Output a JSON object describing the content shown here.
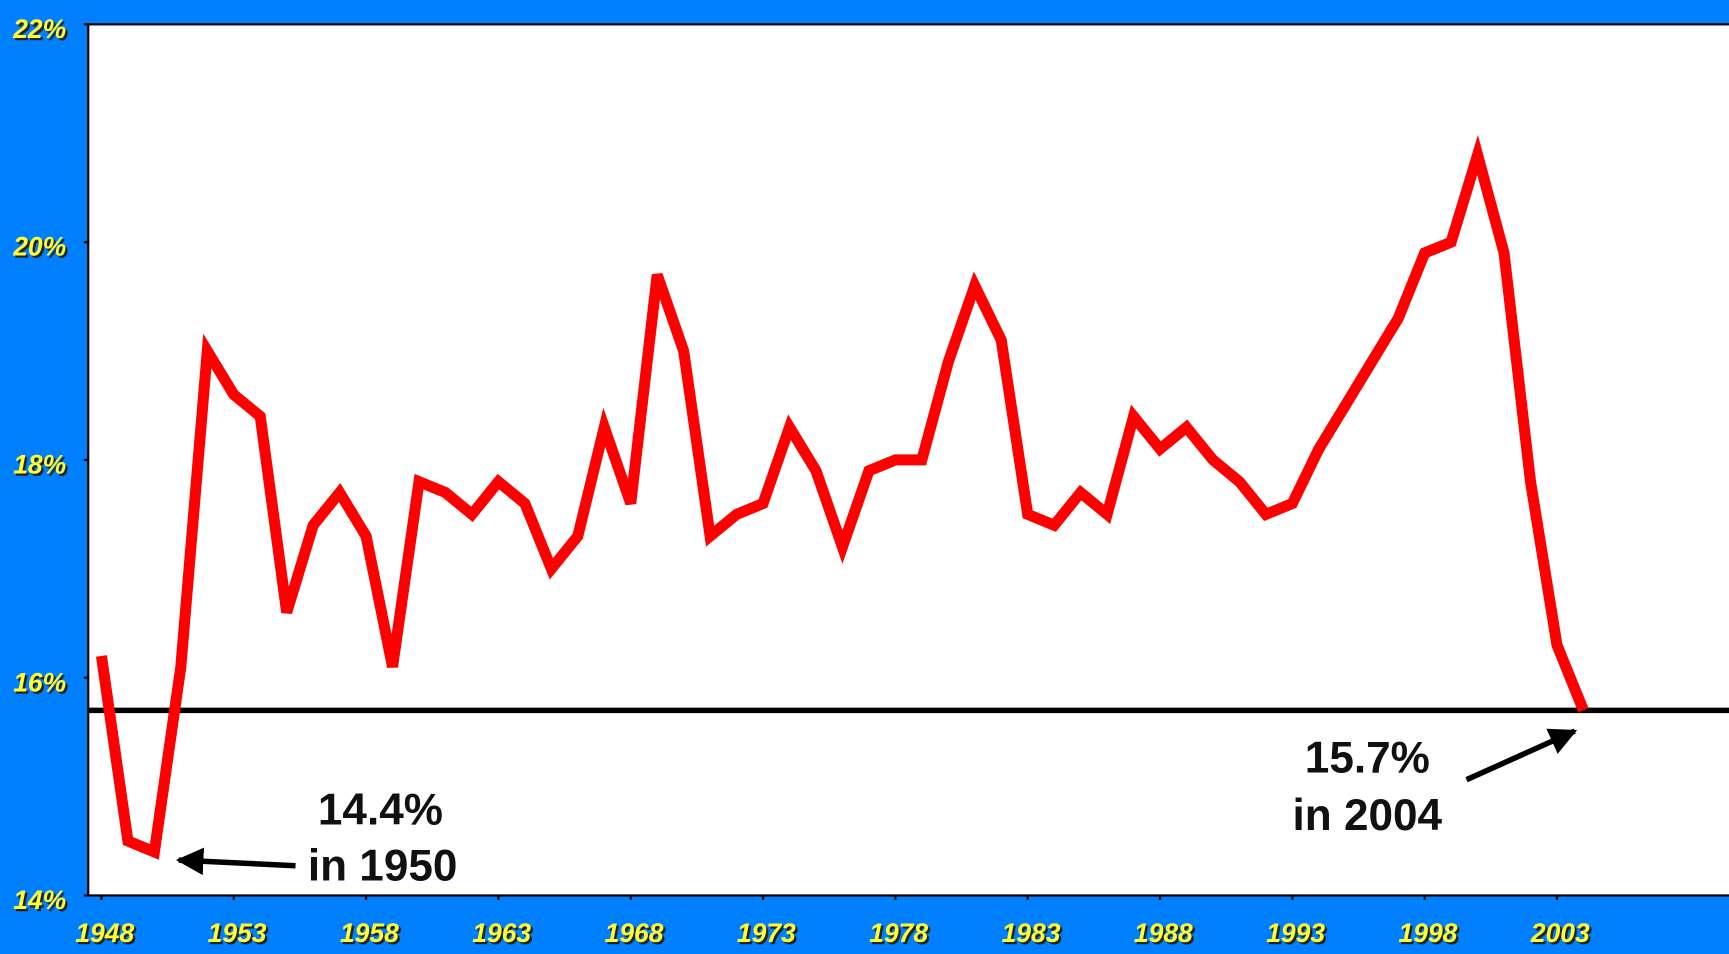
{
  "chart_data": {
    "type": "line",
    "x": [
      1948,
      1949,
      1950,
      1951,
      1952,
      1953,
      1954,
      1955,
      1956,
      1957,
      1958,
      1959,
      1960,
      1961,
      1962,
      1963,
      1964,
      1965,
      1966,
      1967,
      1968,
      1969,
      1970,
      1971,
      1972,
      1973,
      1974,
      1975,
      1976,
      1977,
      1978,
      1979,
      1980,
      1981,
      1982,
      1983,
      1984,
      1985,
      1986,
      1987,
      1988,
      1989,
      1990,
      1991,
      1992,
      1993,
      1994,
      1995,
      1996,
      1997,
      1998,
      1999,
      2000,
      2001,
      2002,
      2003,
      2004
    ],
    "series": [
      {
        "color": "#ff0000",
        "values": [
          16.2,
          14.5,
          14.4,
          16.1,
          19.0,
          18.6,
          18.4,
          16.6,
          17.4,
          17.7,
          17.3,
          16.1,
          17.8,
          17.7,
          17.5,
          17.8,
          17.6,
          17.0,
          17.3,
          18.3,
          17.6,
          19.7,
          19.0,
          17.3,
          17.5,
          17.6,
          18.3,
          17.9,
          17.2,
          17.9,
          18.0,
          18.0,
          18.9,
          19.6,
          19.1,
          17.5,
          17.4,
          17.7,
          17.5,
          18.4,
          18.1,
          18.3,
          18.0,
          17.8,
          17.5,
          17.6,
          18.1,
          18.5,
          18.9,
          19.3,
          19.9,
          20.0,
          20.8,
          19.9,
          17.8,
          16.3,
          15.7
        ]
      }
    ],
    "xlim": [
      1947.5,
      2009.5
    ],
    "xticks": [
      1948,
      1953,
      1958,
      1963,
      1968,
      1973,
      1978,
      1983,
      1988,
      1993,
      1998,
      2003
    ],
    "ylim": [
      14,
      22
    ],
    "yticks": [
      {
        "value": 14,
        "label": "14%"
      },
      {
        "value": 16,
        "label": "16%"
      },
      {
        "value": 18,
        "label": "18%"
      },
      {
        "value": 20,
        "label": "20%"
      },
      {
        "value": 22,
        "label": "22%"
      }
    ],
    "reference_line": 15.7,
    "annotations": [
      {
        "lines": [
          "14.4%",
          "in 1950"
        ]
      },
      {
        "lines": [
          "15.7%",
          "in 2004"
        ]
      }
    ]
  }
}
